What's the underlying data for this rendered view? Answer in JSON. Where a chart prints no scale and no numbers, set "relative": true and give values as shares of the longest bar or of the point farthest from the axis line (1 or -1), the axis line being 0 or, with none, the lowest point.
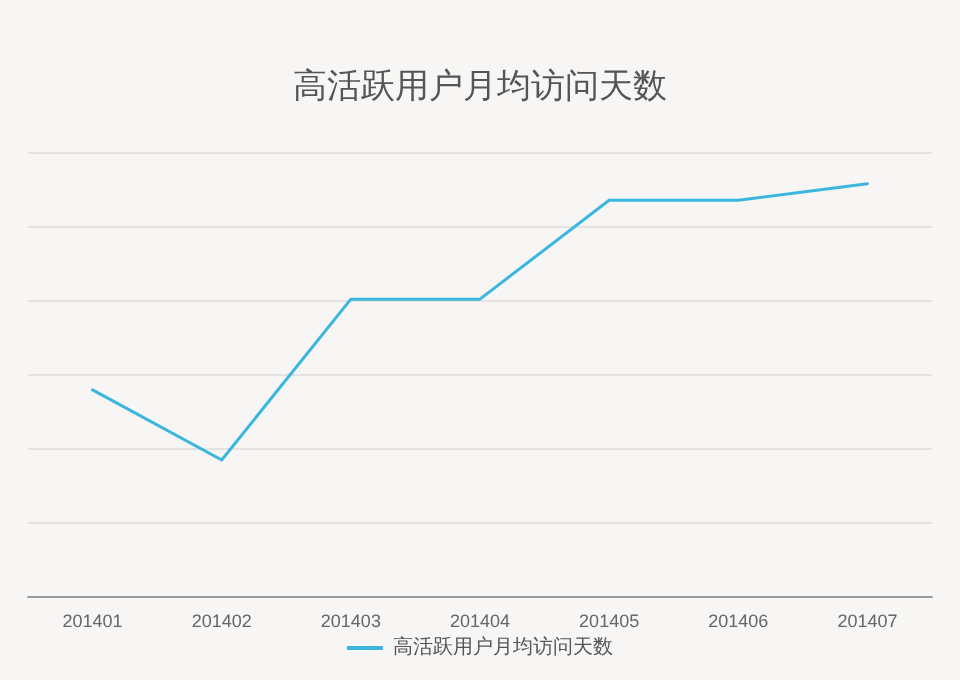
{
  "chart_data": {
    "type": "line",
    "title": "高活跃用户月均访问天数",
    "relative": true,
    "categories": [
      "201401",
      "201402",
      "201403",
      "201404",
      "201405",
      "201406",
      "201407"
    ],
    "series": [
      {
        "name": "高活跃用户月均访问天数",
        "color": "#3bb6de",
        "values": [
          0.5,
          0.33,
          0.72,
          0.72,
          0.96,
          0.96,
          1
        ]
      }
    ],
    "grid": "y",
    "legend": "bottom",
    "marker": "none",
    "line_style": "solid"
  }
}
